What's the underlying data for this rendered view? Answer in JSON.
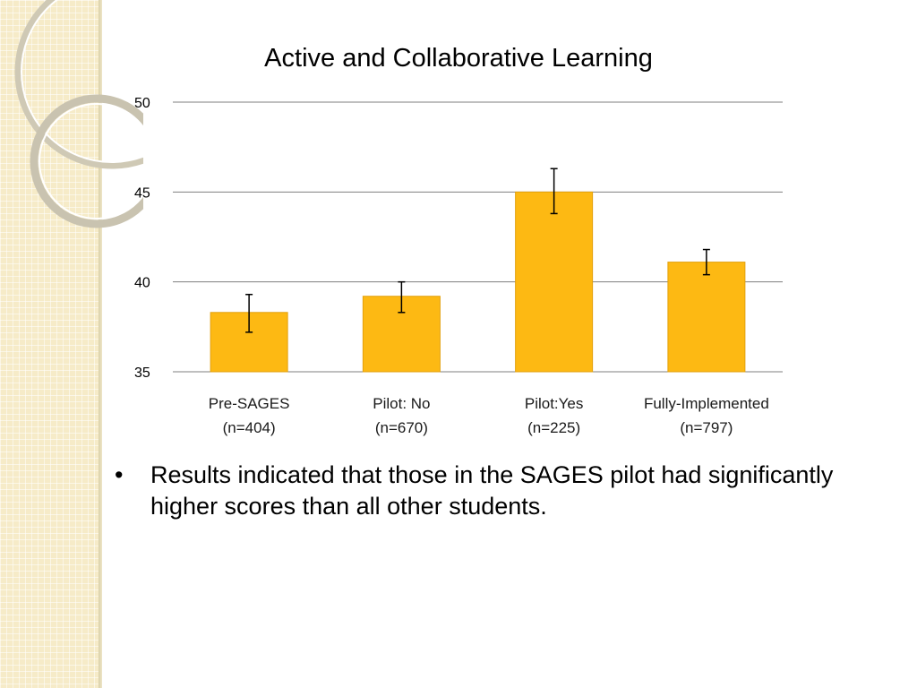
{
  "bullets": [
    {
      "marker": "•",
      "text": "Results indicated that those in the SAGES pilot had significantly higher scores than all other students."
    }
  ],
  "colors": {
    "bar": "#fdb913",
    "bar_edge": "#e2a00c",
    "grid": "#7f7f7f",
    "error_bar": "#000000",
    "sidebar": "#f6ebc8"
  },
  "chart_data": {
    "type": "bar",
    "title": "Active and Collaborative Learning",
    "xlabel": "",
    "ylabel": "",
    "ylim": [
      35,
      50
    ],
    "yticks": [
      35,
      40,
      45,
      50
    ],
    "grid": true,
    "legend": "none",
    "categories": [
      {
        "label": "Pre-SAGES",
        "n": "(n=404)"
      },
      {
        "label": "Pilot: No",
        "n": "(n=670)"
      },
      {
        "label": "Pilot:Yes",
        "n": "(n=225)"
      },
      {
        "label": "Fully-Implemented",
        "n": "(n=797)"
      }
    ],
    "values": [
      38.3,
      39.2,
      45.0,
      41.1
    ],
    "error_low": [
      37.2,
      38.3,
      43.8,
      40.4
    ],
    "error_high": [
      39.3,
      40.0,
      46.3,
      41.8
    ]
  }
}
